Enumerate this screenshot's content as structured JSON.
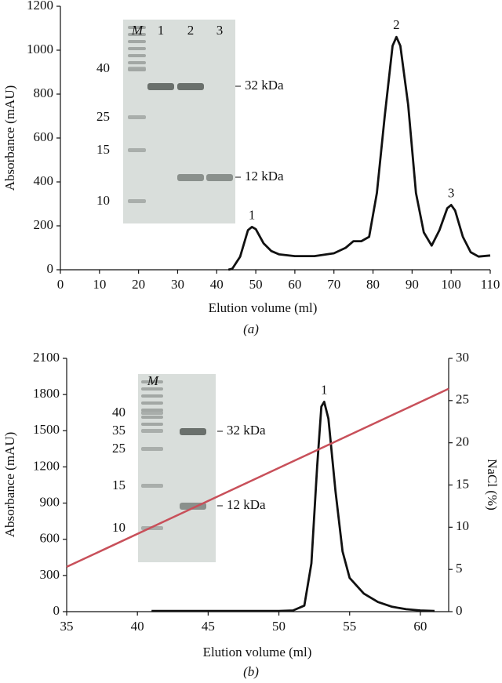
{
  "chart_data": [
    {
      "type": "line",
      "caption": "(a)",
      "xlabel": "Elution volume (ml)",
      "ylabel": "Absorbance (mAU)",
      "xlim": [
        0,
        110
      ],
      "xticks": [
        0,
        10,
        20,
        30,
        40,
        50,
        60,
        70,
        80,
        90,
        100,
        110
      ],
      "ylim": [
        0,
        1200
      ],
      "yticks": [
        0,
        200,
        400,
        600,
        800,
        1000,
        1200
      ],
      "series": [
        {
          "color": "#111111",
          "x": [
            43,
            44,
            46,
            48,
            49,
            50,
            52,
            54,
            56,
            60,
            65,
            70,
            73,
            75,
            77,
            79,
            81,
            83,
            85,
            86,
            87,
            89,
            91,
            93,
            95,
            97,
            99,
            100,
            101,
            103,
            105,
            107,
            110
          ],
          "values": [
            0,
            5,
            60,
            180,
            195,
            185,
            120,
            85,
            70,
            62,
            62,
            75,
            100,
            130,
            130,
            150,
            350,
            700,
            1020,
            1060,
            1020,
            750,
            350,
            170,
            110,
            180,
            280,
            295,
            270,
            150,
            80,
            60,
            65
          ]
        }
      ],
      "annotations": [
        {
          "text": "1",
          "x": 49,
          "y": 195
        },
        {
          "text": "2",
          "x": 86,
          "y": 1060
        },
        {
          "text": "3",
          "x": 100,
          "y": 295
        }
      ],
      "inset": {
        "lane_labels": [
          "M",
          "1",
          "2",
          "3"
        ],
        "marker_labels": [
          "40",
          "25",
          "15",
          "10"
        ],
        "band_labels": [
          "32 kDa",
          "12 kDa"
        ]
      }
    },
    {
      "type": "line",
      "caption": "(b)",
      "xlabel": "Elution volume (ml)",
      "ylabel": "Absorbance (mAU)",
      "y2label": "NaCl (%)",
      "xlim": [
        35,
        62
      ],
      "xticks": [
        35,
        40,
        45,
        50,
        55,
        60
      ],
      "ylim": [
        0,
        2100
      ],
      "yticks": [
        0,
        300,
        600,
        900,
        1200,
        1500,
        1800,
        2100
      ],
      "y2lim": [
        0,
        30
      ],
      "y2ticks": [
        0,
        5,
        10,
        15,
        20,
        25,
        30
      ],
      "series": [
        {
          "color": "#111111",
          "x": [
            41,
            45,
            50,
            51,
            51.8,
            52.3,
            52.7,
            53,
            53.2,
            53.5,
            54,
            54.5,
            55,
            56,
            57,
            58,
            59,
            60,
            61
          ],
          "values": [
            5,
            5,
            5,
            10,
            50,
            400,
            1200,
            1700,
            1740,
            1600,
            1000,
            500,
            280,
            150,
            80,
            40,
            20,
            10,
            5
          ]
        },
        {
          "color": "#c8505a",
          "axis": "y2",
          "x": [
            35,
            62
          ],
          "values": [
            5.3,
            26.4
          ]
        }
      ],
      "annotations": [
        {
          "text": "1",
          "x": 53.2,
          "y": 1740
        }
      ],
      "inset": {
        "lane_labels": [
          "M"
        ],
        "marker_labels": [
          "40",
          "35",
          "25",
          "15",
          "10"
        ],
        "band_labels": [
          "32 kDa",
          "12 kDa"
        ]
      }
    }
  ]
}
